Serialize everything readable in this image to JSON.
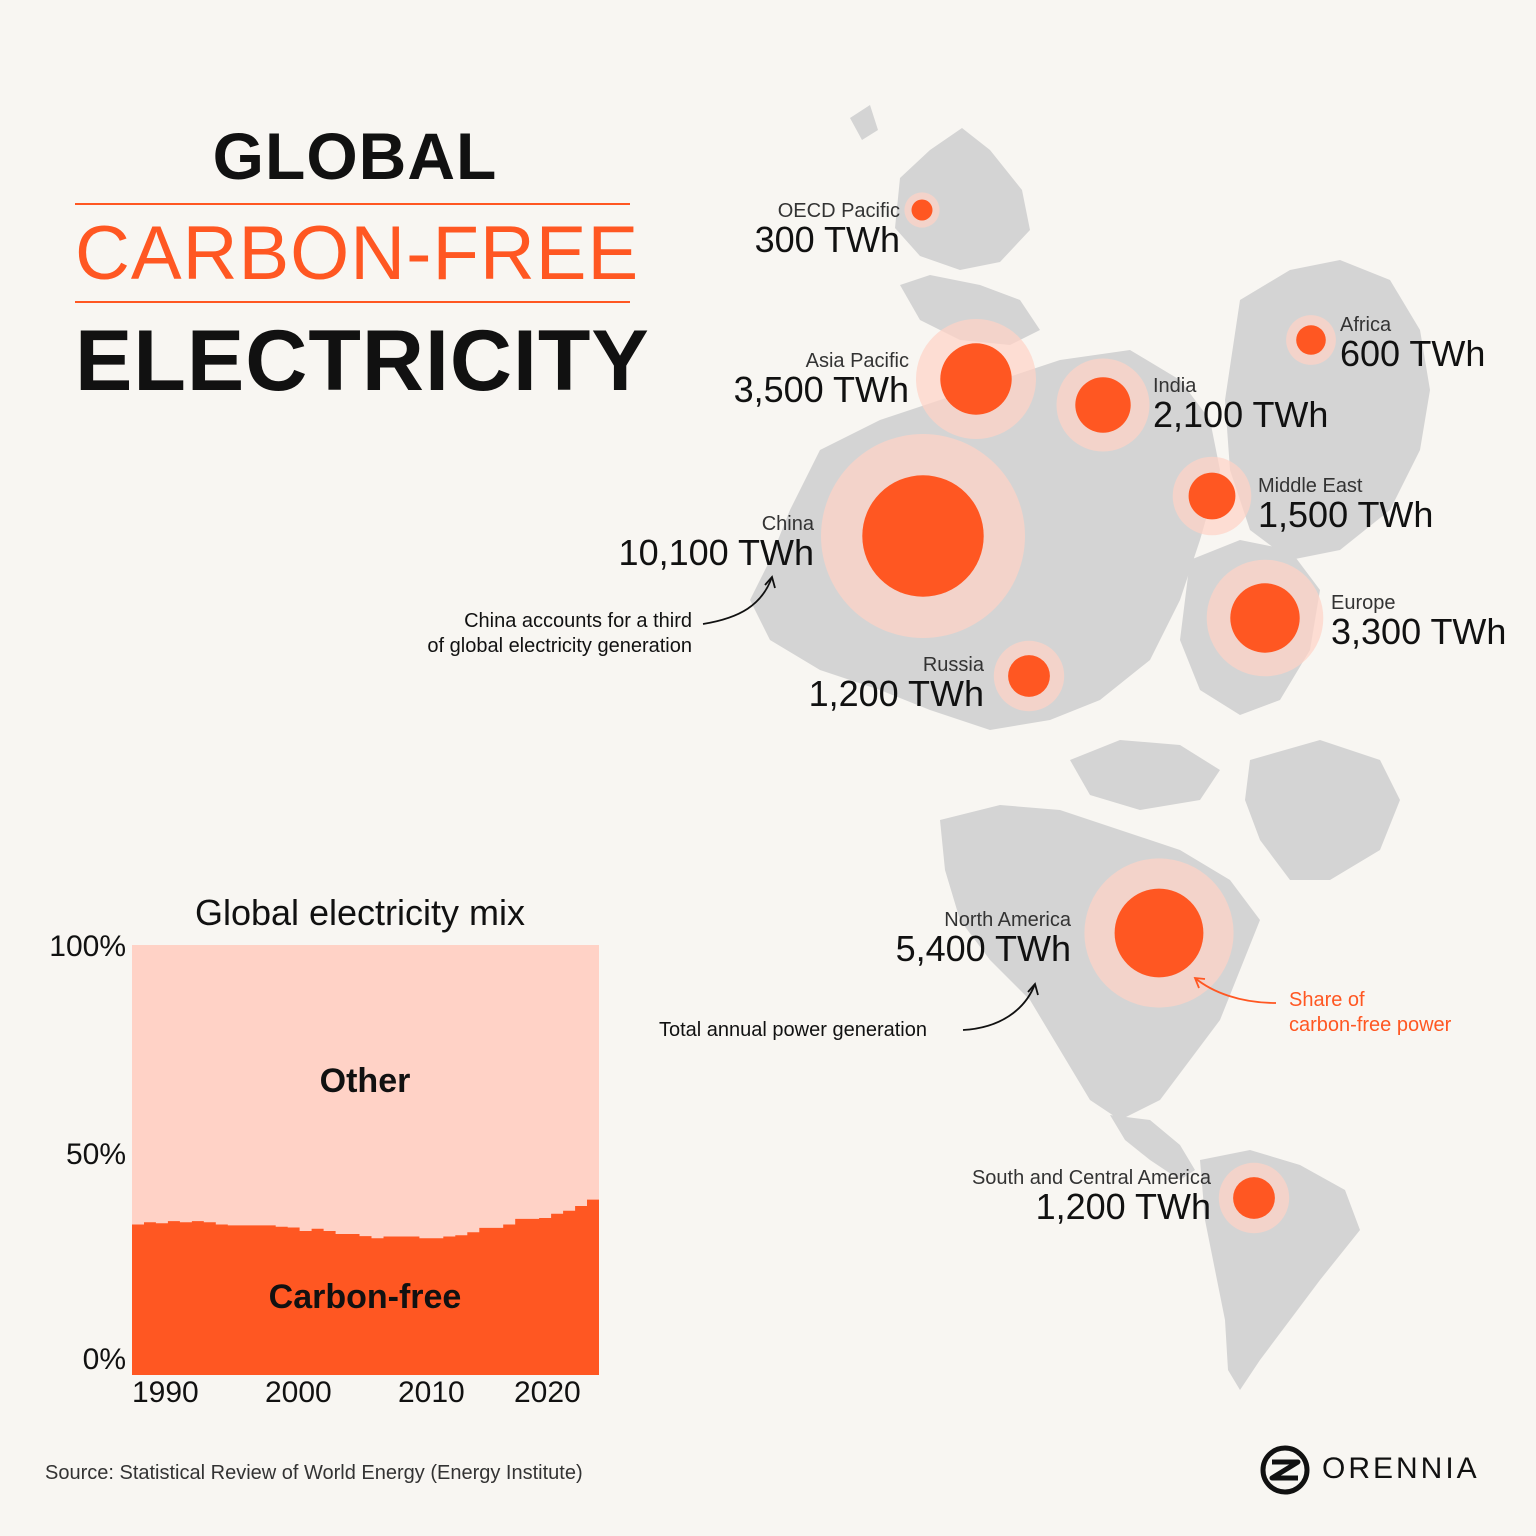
{
  "title": {
    "line1": "GLOBAL",
    "line2": "CARBON-FREE",
    "line3": "ELECTRICITY"
  },
  "colors": {
    "accent": "#ff5722",
    "accent_light": "#ffd2c6",
    "land": "#d4d4d4",
    "background": "#f8f6f2"
  },
  "regions": [
    {
      "name": "OECD Pacific",
      "value": "300 TWh",
      "total_twh": 300
    },
    {
      "name": "Asia Pacific",
      "value": "3,500 TWh",
      "total_twh": 3500
    },
    {
      "name": "India",
      "value": "2,100 TWh",
      "total_twh": 2100
    },
    {
      "name": "Africa",
      "value": "600 TWh",
      "total_twh": 600
    },
    {
      "name": "Middle East",
      "value": "1,500 TWh",
      "total_twh": 1500
    },
    {
      "name": "China",
      "value": "10,100 TWh",
      "total_twh": 10100
    },
    {
      "name": "Europe",
      "value": "3,300 TWh",
      "total_twh": 3300
    },
    {
      "name": "Russia",
      "value": "1,200 TWh",
      "total_twh": 1200
    },
    {
      "name": "North America",
      "value": "5,400 TWh",
      "total_twh": 5400
    },
    {
      "name": "South and Central America",
      "value": "1,200 TWh",
      "total_twh": 1200
    }
  ],
  "annotations": {
    "china_line1": "China accounts for a third",
    "china_line2": "of global electricity generation",
    "total": "Total annual power generation",
    "share_line1": "Share of",
    "share_line2": "carbon-free power"
  },
  "chart_data": {
    "type": "area",
    "title": "Global electricity mix",
    "x": [
      1985,
      1986,
      1987,
      1988,
      1989,
      1990,
      1991,
      1992,
      1993,
      1994,
      1995,
      1996,
      1997,
      1998,
      1999,
      2000,
      2001,
      2002,
      2003,
      2004,
      2005,
      2006,
      2007,
      2008,
      2009,
      2010,
      2011,
      2012,
      2013,
      2014,
      2015,
      2016,
      2017,
      2018,
      2019,
      2020,
      2021,
      2022,
      2023
    ],
    "series": [
      {
        "name": "Carbon-free",
        "values": [
          35,
          35.5,
          35.3,
          35.8,
          35.5,
          35.8,
          35.5,
          35,
          34.8,
          34.8,
          34.8,
          34.8,
          34.5,
          34.3,
          33.5,
          34,
          33.5,
          32.8,
          32.8,
          32.3,
          31.8,
          32.2,
          32.2,
          32.2,
          31.8,
          31.8,
          32.2,
          32.5,
          33.2,
          34.2,
          34.2,
          35,
          36.3,
          36.3,
          36.5,
          37.5,
          38.2,
          39.3,
          40.8
        ]
      },
      {
        "name": "Other",
        "values": [
          65,
          64.5,
          64.7,
          64.2,
          64.5,
          64.2,
          64.5,
          65,
          65.2,
          65.2,
          65.2,
          65.2,
          65.5,
          65.7,
          66.5,
          66,
          66.5,
          67.2,
          67.2,
          67.7,
          68.2,
          67.8,
          67.8,
          67.8,
          68.2,
          68.2,
          67.8,
          67.5,
          66.8,
          65.8,
          65.8,
          65,
          63.7,
          63.7,
          63.5,
          62.5,
          61.8,
          60.7,
          59.2
        ]
      }
    ],
    "yticks": [
      "100%",
      "50%",
      "0%"
    ],
    "xticks": [
      "1990",
      "2000",
      "2010",
      "2020"
    ],
    "ylim": [
      0,
      100
    ],
    "xlim": [
      1985,
      2024
    ]
  },
  "source": "Source: Statistical Review of World Energy (Energy Institute)",
  "brand": "ORENNIA"
}
